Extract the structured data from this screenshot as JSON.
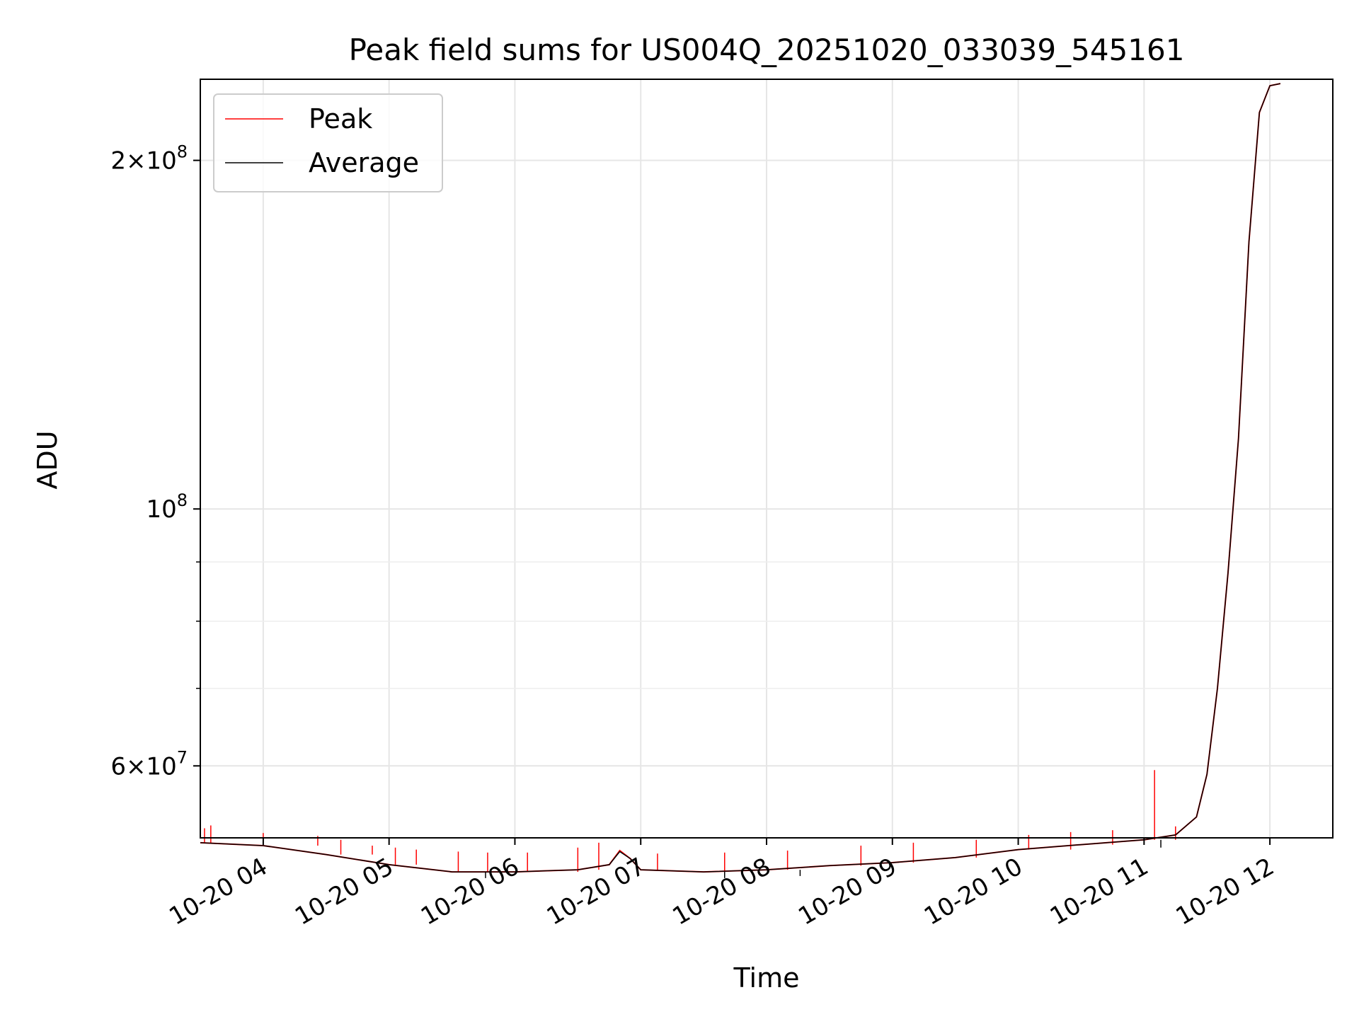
{
  "chart_data": {
    "type": "line",
    "title": "Peak field sums for US004Q_20251020_033039_545161",
    "xlabel": "Time",
    "ylabel": "ADU",
    "y_scale": "log",
    "ylim": [
      52000000,
      235000000
    ],
    "xlim": [
      "2025-10-20 03:30",
      "2025-10-20 12:30"
    ],
    "grid": true,
    "legend_position": "upper-left",
    "x_ticks": [
      {
        "value": "2025-10-20 04:00",
        "label": "10-20 04"
      },
      {
        "value": "2025-10-20 05:00",
        "label": "10-20 05"
      },
      {
        "value": "2025-10-20 06:00",
        "label": "10-20 06"
      },
      {
        "value": "2025-10-20 07:00",
        "label": "10-20 07"
      },
      {
        "value": "2025-10-20 08:00",
        "label": "10-20 08"
      },
      {
        "value": "2025-10-20 09:00",
        "label": "10-20 09"
      },
      {
        "value": "2025-10-20 10:00",
        "label": "10-20 10"
      },
      {
        "value": "2025-10-20 11:00",
        "label": "10-20 11"
      },
      {
        "value": "2025-10-20 12:00",
        "label": "10-20 12"
      }
    ],
    "y_major_ticks": [
      {
        "value": 60000000,
        "base": "6",
        "exp": "7"
      },
      {
        "value": 100000000,
        "base": "",
        "exp": "8"
      },
      {
        "value": 200000000,
        "base": "2",
        "exp": "8"
      }
    ],
    "y_minor_ticks": [
      70000000,
      80000000,
      90000000
    ],
    "series": [
      {
        "name": "Peak",
        "color": "#ff0000",
        "x": [
          "2025-10-20 03:30",
          "2025-10-20 04:00",
          "2025-10-20 04:30",
          "2025-10-20 05:00",
          "2025-10-20 05:30",
          "2025-10-20 06:00",
          "2025-10-20 06:30",
          "2025-10-20 06:45",
          "2025-10-20 06:50",
          "2025-10-20 06:55",
          "2025-10-20 07:00",
          "2025-10-20 07:30",
          "2025-10-20 08:00",
          "2025-10-20 08:30",
          "2025-10-20 09:00",
          "2025-10-20 09:30",
          "2025-10-20 10:00",
          "2025-10-20 10:30",
          "2025-10-20 11:00",
          "2025-10-20 11:15",
          "2025-10-20 11:25",
          "2025-10-20 11:30",
          "2025-10-20 11:35",
          "2025-10-20 11:40",
          "2025-10-20 11:45",
          "2025-10-20 11:50",
          "2025-10-20 11:55",
          "2025-10-20 12:00",
          "2025-10-20 12:05"
        ],
        "y": [
          51500000,
          51200000,
          50300000,
          49300000,
          48600000,
          48600000,
          48800000,
          49300000,
          50700000,
          49900000,
          48800000,
          48600000,
          48800000,
          49200000,
          49500000,
          50000000,
          50800000,
          51300000,
          51800000,
          52300000,
          54200000,
          59000000,
          70000000,
          88000000,
          115000000,
          170000000,
          220000000,
          232000000,
          233000000
        ],
        "spikes": [
          {
            "x": "2025-10-20 03:32",
            "y": 53000000
          },
          {
            "x": "2025-10-20 03:35",
            "y": 53300000
          },
          {
            "x": "2025-10-20 04:00",
            "y": 52500000
          },
          {
            "x": "2025-10-20 04:26",
            "y": 52200000
          },
          {
            "x": "2025-10-20 04:37",
            "y": 51800000
          },
          {
            "x": "2025-10-20 04:52",
            "y": 51200000
          },
          {
            "x": "2025-10-20 05:03",
            "y": 51000000
          },
          {
            "x": "2025-10-20 05:13",
            "y": 50800000
          },
          {
            "x": "2025-10-20 05:33",
            "y": 50600000
          },
          {
            "x": "2025-10-20 05:47",
            "y": 50500000
          },
          {
            "x": "2025-10-20 06:06",
            "y": 50500000
          },
          {
            "x": "2025-10-20 06:30",
            "y": 51000000
          },
          {
            "x": "2025-10-20 06:40",
            "y": 51500000
          },
          {
            "x": "2025-10-20 07:08",
            "y": 50400000
          },
          {
            "x": "2025-10-20 07:40",
            "y": 50500000
          },
          {
            "x": "2025-10-20 08:10",
            "y": 50700000
          },
          {
            "x": "2025-10-20 08:45",
            "y": 51200000
          },
          {
            "x": "2025-10-20 09:10",
            "y": 51500000
          },
          {
            "x": "2025-10-20 09:40",
            "y": 51800000
          },
          {
            "x": "2025-10-20 10:05",
            "y": 52300000
          },
          {
            "x": "2025-10-20 10:25",
            "y": 52600000
          },
          {
            "x": "2025-10-20 10:45",
            "y": 52800000
          },
          {
            "x": "2025-10-20 11:05",
            "y": 59500000
          },
          {
            "x": "2025-10-20 11:15",
            "y": 53200000
          }
        ]
      },
      {
        "name": "Average",
        "color": "#000000",
        "x": [
          "2025-10-20 03:30",
          "2025-10-20 04:00",
          "2025-10-20 04:30",
          "2025-10-20 05:00",
          "2025-10-20 05:30",
          "2025-10-20 06:00",
          "2025-10-20 06:30",
          "2025-10-20 06:45",
          "2025-10-20 06:50",
          "2025-10-20 06:55",
          "2025-10-20 07:00",
          "2025-10-20 07:30",
          "2025-10-20 08:00",
          "2025-10-20 08:30",
          "2025-10-20 09:00",
          "2025-10-20 09:30",
          "2025-10-20 10:00",
          "2025-10-20 10:30",
          "2025-10-20 11:00",
          "2025-10-20 11:15",
          "2025-10-20 11:25",
          "2025-10-20 11:30",
          "2025-10-20 11:35",
          "2025-10-20 11:40",
          "2025-10-20 11:45",
          "2025-10-20 11:50",
          "2025-10-20 11:55",
          "2025-10-20 12:00",
          "2025-10-20 12:05"
        ],
        "y": [
          51500000,
          51200000,
          50300000,
          49300000,
          48600000,
          48600000,
          48800000,
          49300000,
          50600000,
          49900000,
          48800000,
          48600000,
          48800000,
          49200000,
          49500000,
          50000000,
          50800000,
          51300000,
          51800000,
          52300000,
          54200000,
          59000000,
          70000000,
          88000000,
          115000000,
          170000000,
          220000000,
          232000000,
          233000000
        ],
        "dips": [
          {
            "x": "2025-10-20 05:46",
            "y": 48000000
          },
          {
            "x": "2025-10-20 07:40",
            "y": 48000000
          },
          {
            "x": "2025-10-20 08:16",
            "y": 48200000
          },
          {
            "x": "2025-10-20 11:08",
            "y": 51000000
          }
        ]
      }
    ]
  }
}
